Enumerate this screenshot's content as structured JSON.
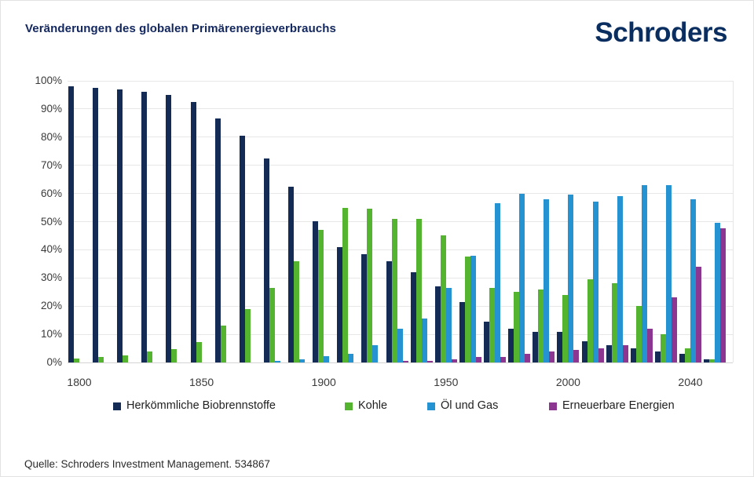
{
  "page": {
    "title": "Veränderungen des globalen Primärenergieverbrauchs",
    "brand": "Schroders",
    "source": "Quelle: Schroders Investment Management. 534867"
  },
  "chart_data": {
    "type": "bar",
    "title": "Veränderungen des globalen Primärenergieverbrauchs",
    "categories": [
      "1800",
      "1810",
      "1820",
      "1830",
      "1840",
      "1850",
      "1860",
      "1870",
      "1880",
      "1890",
      "1900",
      "1910",
      "1920",
      "1930",
      "1940",
      "1950",
      "1960",
      "1970",
      "1980",
      "1990",
      "2000",
      "2010",
      "2020",
      "2025",
      "2030",
      "2040",
      "2050"
    ],
    "series": [
      {
        "name": "Herkömmliche Biobrennstoffe",
        "color": "#142c55",
        "values": [
          98,
          97.5,
          97,
          96,
          95,
          92.5,
          86.5,
          80.5,
          72.5,
          62.5,
          50,
          41,
          38.5,
          36,
          32,
          27,
          21.5,
          14.5,
          12,
          11,
          11,
          7.5,
          6,
          5,
          4,
          3,
          1
        ]
      },
      {
        "name": "Kohle",
        "color": "#55b42f",
        "values": [
          1.5,
          2,
          2.5,
          4,
          4.8,
          7.3,
          13,
          19,
          26.5,
          36,
          47,
          55,
          54.5,
          51,
          51,
          45,
          37.5,
          26.5,
          25,
          26,
          24,
          29.5,
          28,
          20,
          10,
          5,
          1
        ]
      },
      {
        "name": "Öl und Gas",
        "color": "#2593d2",
        "values": [
          0,
          0,
          0,
          0,
          0,
          0,
          0,
          0,
          0.5,
          1,
          2.2,
          3.2,
          6,
          12,
          15.5,
          26.5,
          38,
          56.5,
          60,
          58,
          59.5,
          57,
          59,
          63,
          63,
          58,
          49.5
        ]
      },
      {
        "name": "Erneuerbare Energien",
        "color": "#8c3591",
        "values": [
          0,
          0,
          0,
          0,
          0,
          0,
          0,
          0,
          0,
          0,
          0,
          0,
          0,
          0.5,
          0.5,
          1,
          2,
          2,
          3,
          4,
          4.5,
          5,
          6,
          12,
          23,
          34,
          47.5
        ]
      }
    ],
    "ylim": [
      0,
      100
    ],
    "y_ticks": [
      "0%",
      "10%",
      "20%",
      "30%",
      "40%",
      "50%",
      "60%",
      "70%",
      "80%",
      "90%",
      "100%"
    ],
    "x_tick_labels": [
      {
        "index": 0,
        "label": "1800"
      },
      {
        "index": 5,
        "label": "1850"
      },
      {
        "index": 10,
        "label": "1900"
      },
      {
        "index": 15,
        "label": "1950"
      },
      {
        "index": 20,
        "label": "2000"
      },
      {
        "index": 25,
        "label": "2040"
      }
    ],
    "grid": true,
    "legend_position": "bottom"
  }
}
